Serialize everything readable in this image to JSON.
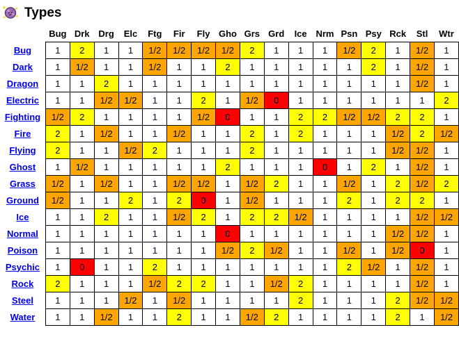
{
  "page": {
    "title": "Types",
    "title_icon": "koffing-sprite-icon"
  },
  "colors": {
    "cell_1": "#FFFFFF",
    "cell_2": "#FFFF00",
    "cell_half": "#FFA500",
    "cell_0": "#FF0000",
    "link": "#0000EE",
    "grid_border": "#000000",
    "sprite_body": "#A06CB4",
    "sprite_sparkle": "#F0D830"
  },
  "chart_data": {
    "type": "heatmap",
    "title": "Types",
    "columns": [
      "Bug",
      "Drk",
      "Drg",
      "Elc",
      "Ftg",
      "Fir",
      "Fly",
      "Gho",
      "Grs",
      "Grd",
      "Ice",
      "Nrm",
      "Psn",
      "Psy",
      "Rck",
      "Stl",
      "Wtr"
    ],
    "rows": [
      "Bug",
      "Dark",
      "Dragon",
      "Electric",
      "Fighting",
      "Fire",
      "Flying",
      "Ghost",
      "Grass",
      "Ground",
      "Ice",
      "Normal",
      "Poison",
      "Psychic",
      "Rock",
      "Steel",
      "Water"
    ],
    "values": [
      [
        "1",
        "2",
        "1",
        "1",
        "1/2",
        "1/2",
        "1/2",
        "1/2",
        "2",
        "1",
        "1",
        "1",
        "1/2",
        "2",
        "1",
        "1/2",
        "1"
      ],
      [
        "1",
        "1/2",
        "1",
        "1",
        "1/2",
        "1",
        "1",
        "2",
        "1",
        "1",
        "1",
        "1",
        "1",
        "2",
        "1",
        "1/2",
        "1"
      ],
      [
        "1",
        "1",
        "2",
        "1",
        "1",
        "1",
        "1",
        "1",
        "1",
        "1",
        "1",
        "1",
        "1",
        "1",
        "1",
        "1/2",
        "1"
      ],
      [
        "1",
        "1",
        "1/2",
        "1/2",
        "1",
        "1",
        "2",
        "1",
        "1/2",
        "0",
        "1",
        "1",
        "1",
        "1",
        "1",
        "1",
        "2"
      ],
      [
        "1/2",
        "2",
        "1",
        "1",
        "1",
        "1",
        "1/2",
        "0",
        "1",
        "1",
        "2",
        "2",
        "1/2",
        "1/2",
        "2",
        "2",
        "1"
      ],
      [
        "2",
        "1",
        "1/2",
        "1",
        "1",
        "1/2",
        "1",
        "1",
        "2",
        "1",
        "2",
        "1",
        "1",
        "1",
        "1/2",
        "2",
        "1/2"
      ],
      [
        "2",
        "1",
        "1",
        "1/2",
        "2",
        "1",
        "1",
        "1",
        "2",
        "1",
        "1",
        "1",
        "1",
        "1",
        "1/2",
        "1/2",
        "1"
      ],
      [
        "1",
        "1/2",
        "1",
        "1",
        "1",
        "1",
        "1",
        "2",
        "1",
        "1",
        "1",
        "0",
        "1",
        "2",
        "1",
        "1/2",
        "1"
      ],
      [
        "1/2",
        "1",
        "1/2",
        "1",
        "1",
        "1/2",
        "1/2",
        "1",
        "1/2",
        "2",
        "1",
        "1",
        "1/2",
        "1",
        "2",
        "1/2",
        "2"
      ],
      [
        "1/2",
        "1",
        "1",
        "2",
        "1",
        "2",
        "0",
        "1",
        "1/2",
        "1",
        "1",
        "1",
        "2",
        "1",
        "2",
        "2",
        "1"
      ],
      [
        "1",
        "1",
        "2",
        "1",
        "1",
        "1/2",
        "2",
        "1",
        "2",
        "2",
        "1/2",
        "1",
        "1",
        "1",
        "1",
        "1/2",
        "1/2"
      ],
      [
        "1",
        "1",
        "1",
        "1",
        "1",
        "1",
        "1",
        "0",
        "1",
        "1",
        "1",
        "1",
        "1",
        "1",
        "1/2",
        "1/2",
        "1"
      ],
      [
        "1",
        "1",
        "1",
        "1",
        "1",
        "1",
        "1",
        "1/2",
        "2",
        "1/2",
        "1",
        "1",
        "1/2",
        "1",
        "1/2",
        "0",
        "1"
      ],
      [
        "1",
        "0",
        "1",
        "1",
        "2",
        "1",
        "1",
        "1",
        "1",
        "1",
        "1",
        "1",
        "2",
        "1/2",
        "1",
        "1/2",
        "1"
      ],
      [
        "2",
        "1",
        "1",
        "1",
        "1/2",
        "2",
        "2",
        "1",
        "1",
        "1/2",
        "2",
        "1",
        "1",
        "1",
        "1",
        "1/2",
        "1"
      ],
      [
        "1",
        "1",
        "1",
        "1/2",
        "1",
        "1/2",
        "1",
        "1",
        "1",
        "1",
        "2",
        "1",
        "1",
        "1",
        "2",
        "1/2",
        "1/2"
      ],
      [
        "1",
        "1",
        "1/2",
        "1",
        "1",
        "2",
        "1",
        "1",
        "1/2",
        "2",
        "1",
        "1",
        "1",
        "1",
        "2",
        "1",
        "1/2"
      ]
    ]
  }
}
